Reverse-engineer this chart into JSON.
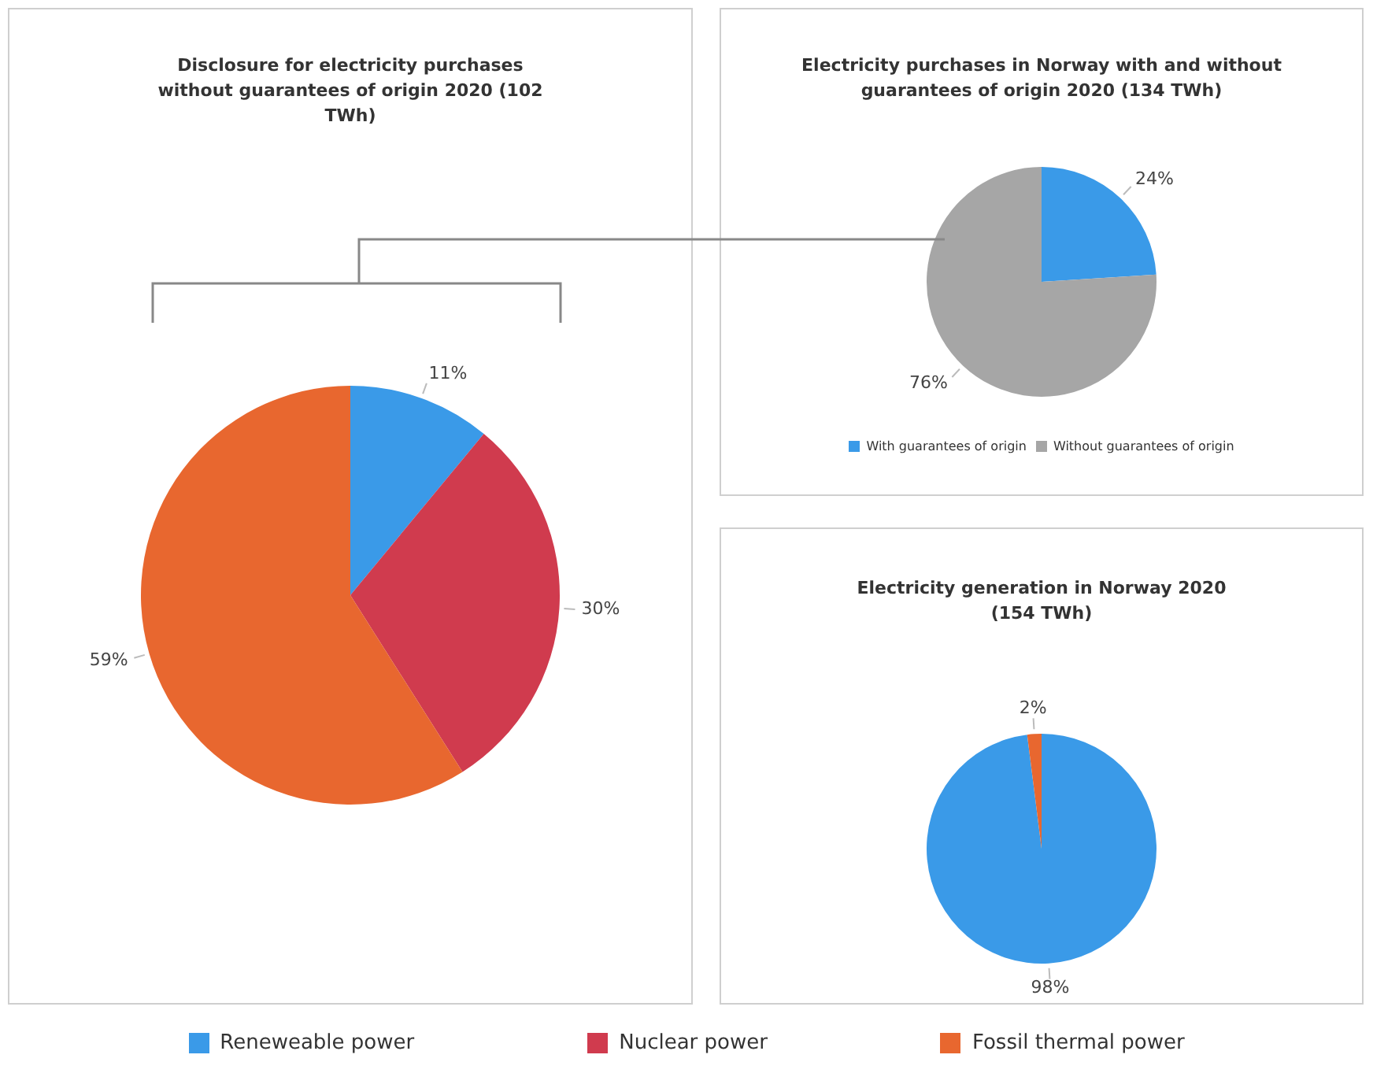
{
  "chart_data": [
    {
      "type": "pie",
      "title": "Disclosure for electricity purchases without guarantees of origin 2020 (102 TWh)",
      "categories": [
        "Reneweable power",
        "Nuclear power",
        "Fossil thermal power"
      ],
      "values": [
        11,
        30,
        59
      ],
      "colors": [
        "#3a9ae8",
        "#d03b4e",
        "#e8672f"
      ],
      "value_labels": [
        "11%",
        "30%",
        "59%"
      ],
      "legend": "bottom"
    },
    {
      "type": "pie",
      "title": "Electricity purchases in Norway with and without guarantees of origin 2020 (134 TWh)",
      "categories": [
        "With guarantees of origin",
        "Without guarantees of origin"
      ],
      "values": [
        24,
        76
      ],
      "colors": [
        "#3a9ae8",
        "#a6a6a6"
      ],
      "value_labels": [
        "24%",
        "76%"
      ],
      "legend": "bottom"
    },
    {
      "type": "pie",
      "title": "Electricity generation in Norway 2020 (154 TWh)",
      "categories": [
        null,
        null
      ],
      "values": [
        98,
        2
      ],
      "colors": [
        "#3a9ae8",
        "#e8672f"
      ],
      "value_labels": [
        "98%",
        "2%"
      ]
    }
  ]
}
